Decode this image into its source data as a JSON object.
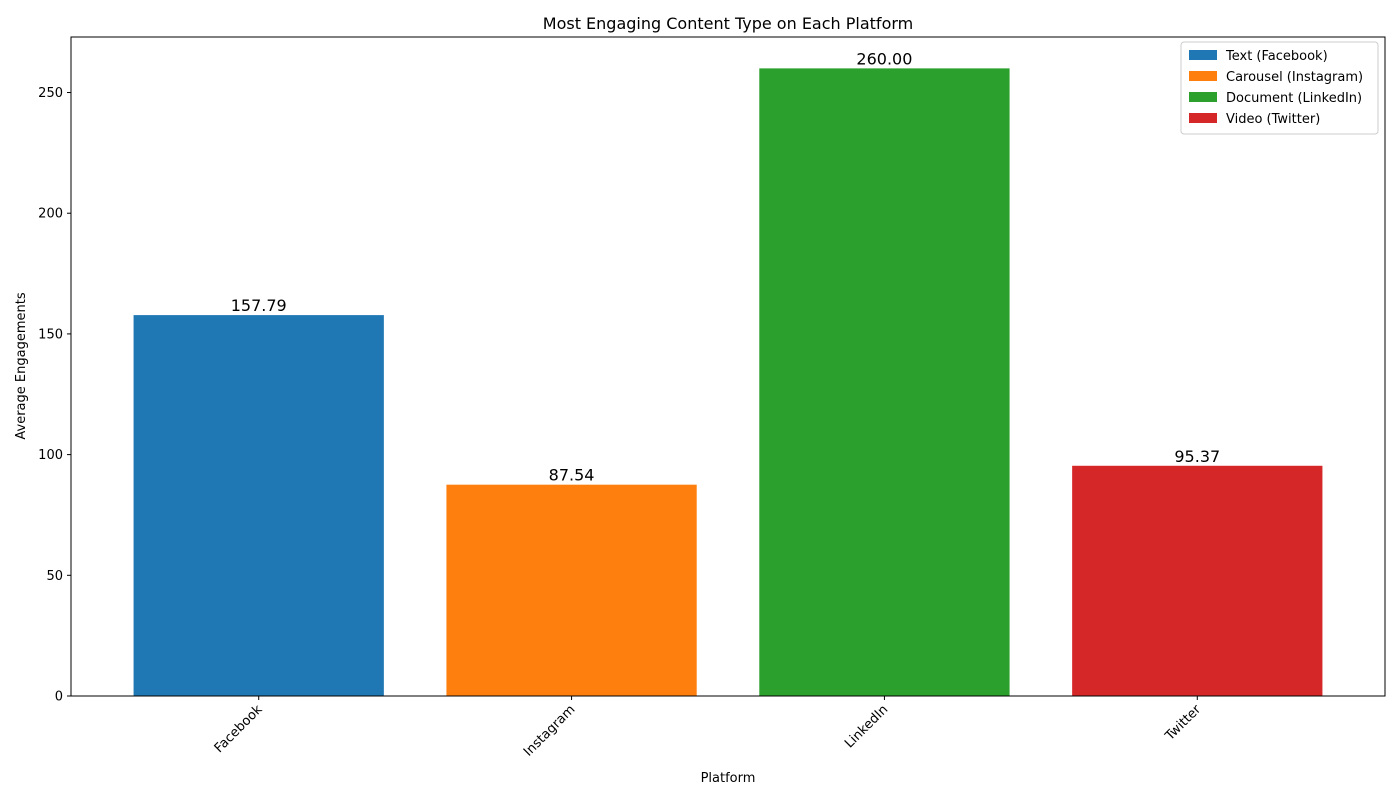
{
  "chart_data": {
    "type": "bar",
    "title": "Most Engaging Content Type on Each Platform",
    "xlabel": "Platform",
    "ylabel": "Average Engagements",
    "categories": [
      "Facebook",
      "Instagram",
      "LinkedIn",
      "Twitter"
    ],
    "values": [
      157.79,
      87.54,
      260.0,
      95.37
    ],
    "value_labels": [
      "157.79",
      "87.54",
      "260.00",
      "95.37"
    ],
    "colors": [
      "#1f77b4",
      "#ff7f0e",
      "#2ca02c",
      "#d62728"
    ],
    "legend": [
      "Text (Facebook)",
      "Carousel (Instagram)",
      "Document (LinkedIn)",
      "Video (Twitter)"
    ],
    "legend_position": "top-right",
    "ylim": [
      0,
      273
    ],
    "yticks": [
      0,
      50,
      100,
      150,
      200,
      250
    ],
    "grid": false
  }
}
